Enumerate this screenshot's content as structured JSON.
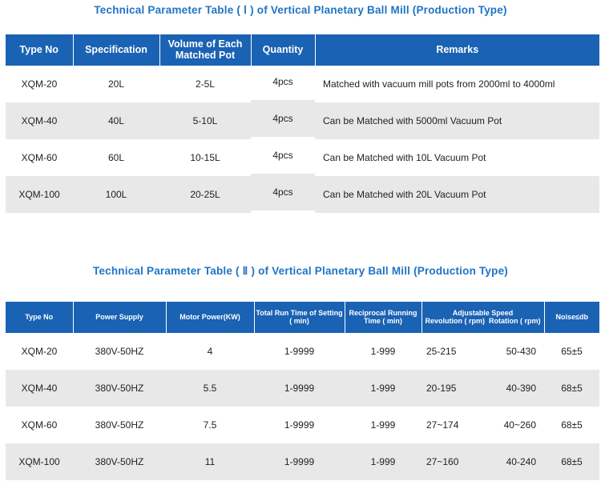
{
  "table1": {
    "title": "Technical Parameter Table ( Ⅰ ) of Vertical Planetary Ball Mill (Production Type)",
    "headers": [
      "Type No",
      "Specification",
      "Volume of Each Matched Pot",
      "Quantity",
      "Remarks"
    ],
    "rows": [
      [
        "XQM-20",
        "20L",
        "2-5L",
        "4pcs",
        "Matched with vacuum mill pots from 2000ml to 4000ml"
      ],
      [
        "XQM-40",
        "40L",
        "5-10L",
        "4pcs",
        "Can be Matched with 5000ml Vacuum Pot"
      ],
      [
        "XQM-60",
        "60L",
        "10-15L",
        "4pcs",
        "Can be Matched with 10L Vacuum Pot"
      ],
      [
        "XQM-100",
        "100L",
        "20-25L",
        "4pcs",
        "Can be Matched with 20L Vacuum Pot"
      ]
    ]
  },
  "table2": {
    "title": "Technical Parameter Table ( Ⅱ ) of Vertical Planetary Ball Mill (Production Type)",
    "headers": {
      "type_no": "Type No",
      "power_supply": "Power Supply",
      "motor_power": "Motor Power(KW)",
      "total_run_time": "Total Run Time of Setting ( min)",
      "reciprocal": "Reciprocal Running Time ( min)",
      "speed": "Adjustable Speed",
      "revolution": "Revolution ( rpm)",
      "rotation": "Rotation ( rpm)",
      "noise": "Noise≤db"
    },
    "rows": [
      [
        "XQM-20",
        "380V-50HZ",
        "4",
        "1-9999",
        "1-999",
        "25-215",
        "50-430",
        "65±5"
      ],
      [
        "XQM-40",
        "380V-50HZ",
        "5.5",
        "1-9999",
        "1-999",
        "20-195",
        "40-390",
        "68±5"
      ],
      [
        "XQM-60",
        "380V-50HZ",
        "7.5",
        "1-9999",
        "1-999",
        "27~174",
        "40~260",
        "68±5"
      ],
      [
        "XQM-100",
        "380V-50HZ",
        "11",
        "1-9999",
        "1-999",
        "27~160",
        "40-240",
        "68±5"
      ]
    ]
  }
}
